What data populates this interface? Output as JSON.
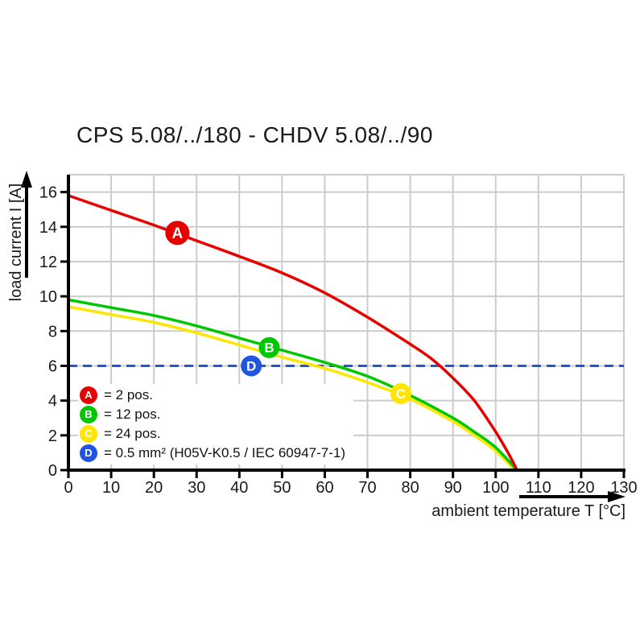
{
  "title": "CPS 5.08/../180 - CHDV 5.08/../90",
  "chart_data": {
    "type": "line",
    "title": "CPS 5.08/../180 - CHDV 5.08/../90",
    "xlabel": "ambient temperature T [°C]",
    "ylabel": "load current I [A]",
    "xlim": [
      0,
      130
    ],
    "ylim": [
      0,
      17
    ],
    "x_ticks": [
      0,
      10,
      20,
      30,
      40,
      50,
      60,
      70,
      80,
      90,
      100,
      110,
      120,
      130
    ],
    "y_ticks": [
      0,
      2,
      4,
      6,
      8,
      10,
      12,
      14,
      16
    ],
    "grid": true,
    "grid_color": "#cccccc",
    "axis_color": "#000000",
    "legend_position": "inside-bottom-left",
    "series": [
      {
        "name": "A",
        "label": "= 2 pos.",
        "color": "#e60000",
        "marker": {
          "letter": "A",
          "x": 25.5,
          "y": 13.65,
          "r": 15
        },
        "points": [
          [
            0,
            15.8
          ],
          [
            10,
            14.95
          ],
          [
            20,
            14.1
          ],
          [
            30,
            13.2
          ],
          [
            40,
            12.3
          ],
          [
            50,
            11.35
          ],
          [
            60,
            10.2
          ],
          [
            70,
            8.8
          ],
          [
            80,
            7.25
          ],
          [
            85,
            6.4
          ],
          [
            90,
            5.3
          ],
          [
            95,
            4.0
          ],
          [
            100,
            2.2
          ],
          [
            103,
            0.95
          ],
          [
            105,
            0
          ]
        ]
      },
      {
        "name": "B",
        "label": "= 12 pos.",
        "color": "#00c800",
        "marker": {
          "letter": "B",
          "x": 47,
          "y": 7.05,
          "r": 13
        },
        "points": [
          [
            0,
            9.8
          ],
          [
            10,
            9.35
          ],
          [
            20,
            8.9
          ],
          [
            30,
            8.3
          ],
          [
            40,
            7.6
          ],
          [
            50,
            6.9
          ],
          [
            60,
            6.2
          ],
          [
            70,
            5.4
          ],
          [
            80,
            4.3
          ],
          [
            90,
            3.0
          ],
          [
            95,
            2.2
          ],
          [
            100,
            1.3
          ],
          [
            105,
            0
          ]
        ]
      },
      {
        "name": "C",
        "label": "= 24 pos.",
        "color": "#ffe600",
        "marker": {
          "letter": "C",
          "x": 77.8,
          "y": 4.4,
          "r": 13
        },
        "points": [
          [
            0,
            9.4
          ],
          [
            10,
            8.95
          ],
          [
            20,
            8.5
          ],
          [
            30,
            7.9
          ],
          [
            40,
            7.2
          ],
          [
            50,
            6.5
          ],
          [
            60,
            5.85
          ],
          [
            70,
            5.05
          ],
          [
            80,
            4.1
          ],
          [
            90,
            2.8
          ],
          [
            95,
            2.0
          ],
          [
            100,
            1.1
          ],
          [
            104.5,
            0
          ]
        ]
      }
    ],
    "limit_line": {
      "name": "D",
      "label": "= 0.5 mm² (H05V-K0.5 / IEC 60947-7-1)",
      "color": "#2154e0",
      "y": 6,
      "style": "dashed",
      "x_range": [
        0,
        130
      ],
      "marker": {
        "letter": "D",
        "x": 42.8,
        "y": 6,
        "r": 13
      }
    }
  },
  "legend": {
    "items": [
      {
        "letter": "A",
        "label": "= 2 pos.",
        "color": "#e60000"
      },
      {
        "letter": "B",
        "label": "= 12 pos.",
        "color": "#00c800"
      },
      {
        "letter": "C",
        "label": "= 24 pos.",
        "color": "#ffe600"
      },
      {
        "letter": "D",
        "label": "= 0.5 mm² (H05V-K0.5 / IEC 60947-7-1)",
        "color": "#2154e0"
      }
    ]
  }
}
